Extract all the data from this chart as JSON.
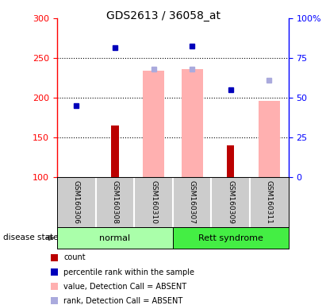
{
  "title": "GDS2613 / 36058_at",
  "samples": [
    "GSM160306",
    "GSM160308",
    "GSM160310",
    "GSM160307",
    "GSM160309",
    "GSM160311"
  ],
  "groups": [
    "normal",
    "normal",
    "normal",
    "Rett syndrome",
    "Rett syndrome",
    "Rett syndrome"
  ],
  "ylim_left": [
    100,
    300
  ],
  "ylim_right": [
    0,
    100
  ],
  "yticks_left": [
    100,
    150,
    200,
    250,
    300
  ],
  "yticks_right": [
    0,
    25,
    50,
    75,
    100
  ],
  "yticklabels_right": [
    "0",
    "25",
    "50",
    "75",
    "100%"
  ],
  "count_values": [
    null,
    165,
    null,
    null,
    140,
    null
  ],
  "count_color": "#bb0000",
  "percentile_values": [
    190,
    263,
    null,
    265,
    210,
    null
  ],
  "percentile_color": "#0000bb",
  "absent_value_bars": [
    null,
    null,
    234,
    236,
    null,
    196
  ],
  "absent_value_bar_color": "#ffb0b0",
  "absent_rank_points": [
    null,
    null,
    236,
    236,
    null,
    222
  ],
  "absent_rank_color": "#aaaadd",
  "bar_bottom": 100,
  "grid_lines": [
    150,
    200,
    250
  ],
  "normal_color": "#aaffaa",
  "rett_color": "#44ee44",
  "legend_labels": [
    "count",
    "percentile rank within the sample",
    "value, Detection Call = ABSENT",
    "rank, Detection Call = ABSENT"
  ],
  "legend_colors": [
    "#bb0000",
    "#0000bb",
    "#ffb0b0",
    "#aaaadd"
  ]
}
